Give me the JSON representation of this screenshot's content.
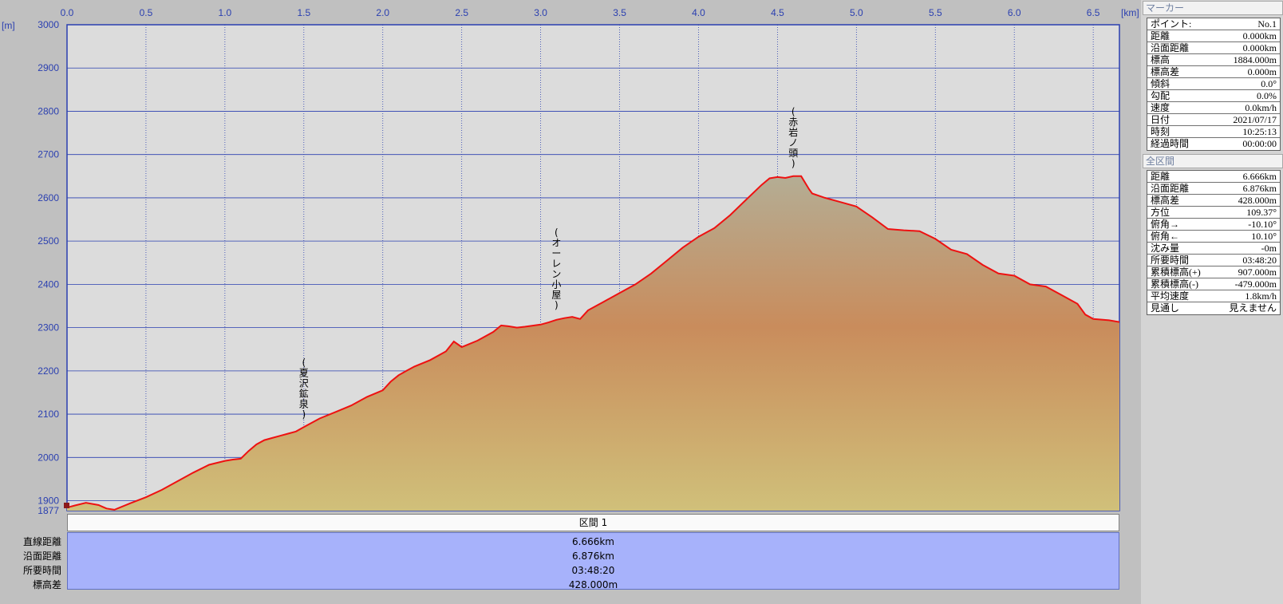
{
  "chart_data": {
    "type": "area",
    "x_unit": "[km]",
    "y_unit": "[m]",
    "xlim": [
      0,
      6.666
    ],
    "ylim": [
      1877,
      3000
    ],
    "x_ticks": [
      "0.0",
      "0.5",
      "1.0",
      "1.5",
      "2.0",
      "2.5",
      "3.0",
      "3.5",
      "4.0",
      "4.5",
      "5.0",
      "5.5",
      "6.0",
      "6.5"
    ],
    "y_ticks": [
      "1877",
      "1900",
      "2000",
      "2100",
      "2200",
      "2300",
      "2400",
      "2500",
      "2600",
      "2700",
      "2800",
      "2900",
      "3000"
    ],
    "grid": true,
    "line_color": "#ee1111",
    "fill_top_color": "#b4ad94",
    "fill_mid_color": "#c98c5c",
    "fill_bottom_color": "#d0c07a",
    "plot_bg_color": "#dcdcdc",
    "grid_color": "#2a3fb0",
    "profile": {
      "x": [
        0,
        0.05,
        0.12,
        0.2,
        0.25,
        0.3,
        0.4,
        0.5,
        0.6,
        0.7,
        0.8,
        0.9,
        1.0,
        1.05,
        1.1,
        1.15,
        1.2,
        1.25,
        1.3,
        1.35,
        1.4,
        1.45,
        1.5,
        1.55,
        1.6,
        1.7,
        1.8,
        1.9,
        2.0,
        2.05,
        2.1,
        2.15,
        2.2,
        2.3,
        2.4,
        2.45,
        2.5,
        2.52,
        2.6,
        2.7,
        2.75,
        2.8,
        2.85,
        2.9,
        3.0,
        3.05,
        3.1,
        3.15,
        3.2,
        3.25,
        3.3,
        3.35,
        3.4,
        3.5,
        3.6,
        3.7,
        3.8,
        3.9,
        4.0,
        4.1,
        4.2,
        4.3,
        4.4,
        4.45,
        4.5,
        4.55,
        4.6,
        4.65,
        4.7,
        4.72,
        4.8,
        4.9,
        5.0,
        5.1,
        5.2,
        5.3,
        5.4,
        5.5,
        5.6,
        5.7,
        5.8,
        5.9,
        6.0,
        6.1,
        6.2,
        6.3,
        6.4,
        6.45,
        6.5,
        6.6,
        6.666
      ],
      "y": [
        1884,
        1889,
        1895,
        1890,
        1882,
        1879,
        1894,
        1908,
        1925,
        1945,
        1965,
        1983,
        1992,
        1995,
        1997,
        2015,
        2030,
        2040,
        2045,
        2050,
        2055,
        2060,
        2070,
        2080,
        2090,
        2105,
        2120,
        2140,
        2155,
        2175,
        2190,
        2200,
        2210,
        2225,
        2245,
        2268,
        2255,
        2258,
        2270,
        2290,
        2305,
        2303,
        2300,
        2302,
        2307,
        2312,
        2318,
        2322,
        2325,
        2320,
        2340,
        2350,
        2360,
        2380,
        2400,
        2425,
        2455,
        2485,
        2510,
        2530,
        2560,
        2595,
        2630,
        2645,
        2648,
        2646,
        2650,
        2650,
        2620,
        2610,
        2600,
        2590,
        2580,
        2555,
        2528,
        2525,
        2523,
        2505,
        2480,
        2470,
        2445,
        2425,
        2420,
        2400,
        2395,
        2375,
        2355,
        2330,
        2320,
        2317,
        2313
      ]
    },
    "annotations": [
      {
        "text": "(赤岩ノ頭)",
        "x": 4.6,
        "y": 2650
      },
      {
        "text": "(オーレン小屋)",
        "x": 3.1,
        "y": 2322
      },
      {
        "text": "(夏沢鉱泉)",
        "x": 1.5,
        "y": 2070
      }
    ]
  },
  "section": {
    "header": "区間 1",
    "labels": [
      "直線距離",
      "沿面距離",
      "所要時間",
      "標高差"
    ],
    "values": [
      "6.666km",
      "6.876km",
      "03:48:20",
      "428.000m"
    ]
  },
  "panel": {
    "marker_title": "マーカー",
    "marker_rows": [
      {
        "k": "ポイント:",
        "v": "No.1"
      },
      {
        "k": "距離",
        "v": "0.000km"
      },
      {
        "k": "沿面距離",
        "v": "0.000km"
      },
      {
        "k": "標高",
        "v": "1884.000m"
      },
      {
        "k": "標高差",
        "v": "0.000m"
      },
      {
        "k": "傾斜",
        "v": "0.0°"
      },
      {
        "k": "勾配",
        "v": "0.0%"
      },
      {
        "k": "速度",
        "v": "0.0km/h"
      },
      {
        "k": "日付",
        "v": "2021/07/17"
      },
      {
        "k": "時刻",
        "v": "10:25:13"
      },
      {
        "k": "経過時間",
        "v": "00:00:00"
      }
    ],
    "total_title": "全区間",
    "total_rows": [
      {
        "k": "距離",
        "v": "6.666km"
      },
      {
        "k": "沿面距離",
        "v": "6.876km"
      },
      {
        "k": "標高差",
        "v": "428.000m"
      },
      {
        "k": "方位",
        "v": "109.37°"
      },
      {
        "k": "俯角→",
        "v": "-10.10°"
      },
      {
        "k": "俯角←",
        "v": "10.10°"
      },
      {
        "k": "沈み量",
        "v": "-0m"
      },
      {
        "k": "所要時間",
        "v": "03:48:20"
      },
      {
        "k": "累積標高(+)",
        "v": "907.000m"
      },
      {
        "k": "累積標高(-)",
        "v": "-479.000m"
      },
      {
        "k": "平均速度",
        "v": "1.8km/h"
      },
      {
        "k": "見通し",
        "v": "見えません"
      }
    ]
  }
}
